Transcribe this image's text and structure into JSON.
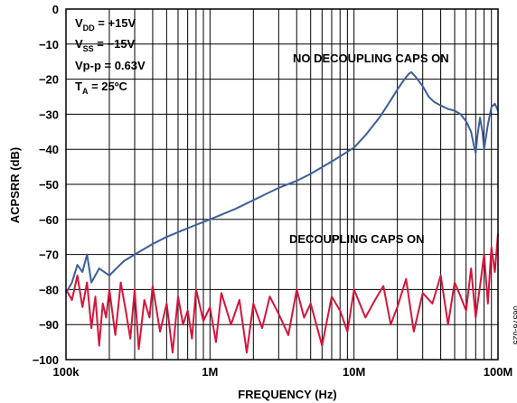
{
  "chart_data": {
    "type": "line",
    "xlabel": "FREQUENCY (Hz)",
    "ylabel": "ACPSRR (dB)",
    "xscale": "log",
    "xlim": [
      100000,
      100000000
    ],
    "ylim": [
      -100,
      0
    ],
    "x_tick_labels": [
      "100k",
      "1M",
      "10M",
      "100M"
    ],
    "y_tick_labels": [
      "0",
      "−10",
      "−20",
      "−30",
      "−40",
      "−50",
      "−60",
      "−70",
      "−80",
      "−90",
      "−100"
    ],
    "grid": true,
    "conditions": {
      "vdd": {
        "main": "V",
        "sub": "DD",
        "rest": " = +15V"
      },
      "vss": {
        "main": "V",
        "sub": "SS",
        "rest": " = −15V"
      },
      "vpp": "Vp-p = 0.63V",
      "ta": {
        "main": "T",
        "sub": "A",
        "rest": " = 25ºC"
      }
    },
    "annotations": {
      "no_caps": "NO DECOUPLING CAPS ON",
      "caps": "DECOUPLING CAPS ON"
    },
    "figure_id": "06576-025",
    "series": [
      {
        "color": "#3c5e9c",
        "x": [
          100000,
          110000,
          120000,
          130000,
          140000,
          150000,
          170000,
          200000,
          250000,
          300000,
          400000,
          500000,
          700000,
          1000000,
          1500000,
          2000000,
          3000000,
          4000000,
          5000000,
          7000000,
          10000000,
          12000000,
          15000000,
          18000000,
          20000000,
          22000000,
          24000000,
          25000000,
          27000000,
          30000000,
          33000000,
          36000000,
          40000000,
          45000000,
          50000000,
          55000000,
          60000000,
          65000000,
          68000000,
          70000000,
          72000000,
          75000000,
          78000000,
          80000000,
          85000000,
          90000000,
          95000000,
          100000000
        ],
        "y": [
          -81,
          -78,
          -73,
          -75,
          -70,
          -78,
          -74,
          -76,
          -72,
          -70,
          -67,
          -65,
          -62.5,
          -60,
          -57,
          -54.5,
          -51,
          -49,
          -47,
          -43.5,
          -39.5,
          -36,
          -31,
          -26,
          -23,
          -20.5,
          -18.5,
          -18,
          -19.5,
          -22,
          -25,
          -26.5,
          -27.5,
          -28.5,
          -29,
          -30,
          -32,
          -35,
          -39,
          -41,
          -36,
          -31,
          -35,
          -40,
          -33,
          -28,
          -27,
          -29
        ]
      },
      {
        "color": "#d5153a",
        "x": [
          100000,
          110000,
          120000,
          130000,
          140000,
          150000,
          160000,
          170000,
          180000,
          190000,
          200000,
          220000,
          240000,
          260000,
          280000,
          300000,
          320000,
          350000,
          380000,
          400000,
          450000,
          500000,
          550000,
          600000,
          650000,
          700000,
          750000,
          800000,
          900000,
          1000000,
          1100000,
          1200000,
          1400000,
          1600000,
          1800000,
          2000000,
          2300000,
          2600000,
          3000000,
          3500000,
          4000000,
          4500000,
          5000000,
          6000000,
          7000000,
          8000000,
          9000000,
          10000000,
          12000000,
          14000000,
          16000000,
          18000000,
          20000000,
          23000000,
          26000000,
          30000000,
          35000000,
          40000000,
          45000000,
          50000000,
          55000000,
          60000000,
          65000000,
          70000000,
          75000000,
          80000000,
          85000000,
          90000000,
          95000000,
          100000000
        ],
        "y": [
          -80,
          -83,
          -76,
          -85,
          -78,
          -91,
          -82,
          -96,
          -84,
          -88,
          -80,
          -93,
          -78,
          -86,
          -94,
          -80,
          -97,
          -83,
          -88,
          -79,
          -92,
          -84,
          -98,
          -82,
          -90,
          -86,
          -94,
          -80,
          -89,
          -85,
          -95,
          -81,
          -90,
          -83,
          -98,
          -84,
          -91,
          -82,
          -87,
          -93,
          -80,
          -88,
          -84,
          -96,
          -82,
          -86,
          -92,
          -80,
          -88,
          -83,
          -79,
          -90,
          -85,
          -77,
          -92,
          -81,
          -84,
          -76,
          -90,
          -78,
          -82,
          -86,
          -74,
          -88,
          -79,
          -70,
          -84,
          -68,
          -75,
          -64
        ]
      }
    ]
  }
}
